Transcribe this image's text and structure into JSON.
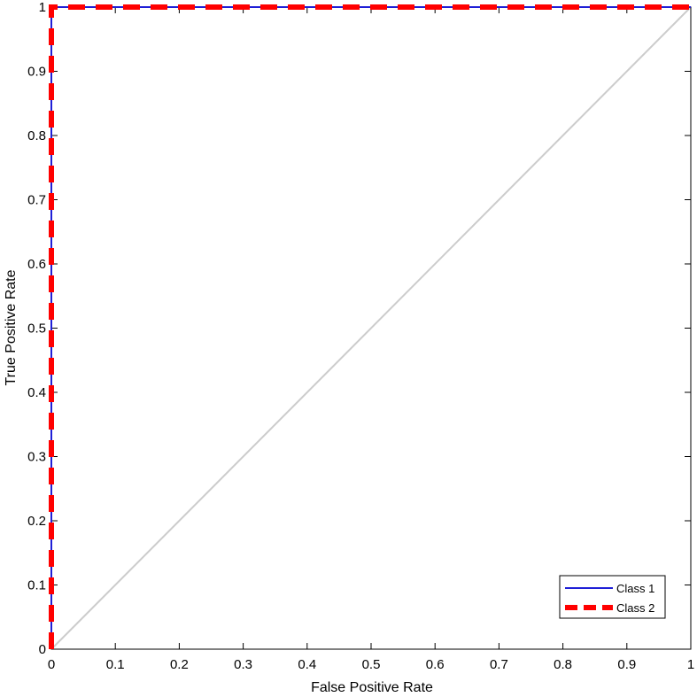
{
  "chart_data": {
    "type": "line",
    "title": "",
    "xlabel": "False Positive Rate",
    "ylabel": "True Positive Rate",
    "xlim": [
      0,
      1
    ],
    "ylim": [
      0,
      1
    ],
    "xticks": [
      "0",
      "0.1",
      "0.2",
      "0.3",
      "0.4",
      "0.5",
      "0.6",
      "0.7",
      "0.8",
      "0.9",
      "1"
    ],
    "yticks": [
      "0",
      "0.1",
      "0.2",
      "0.3",
      "0.4",
      "0.5",
      "0.6",
      "0.7",
      "0.8",
      "0.9",
      "1"
    ],
    "grid": false,
    "legend_position": "bottom-right",
    "reference_line": {
      "x": [
        0,
        1
      ],
      "y": [
        0,
        1
      ],
      "color": "#cccccc"
    },
    "series": [
      {
        "name": "Class 1",
        "color": "#1f1fd6",
        "style": "solid",
        "x": [
          0,
          0,
          1
        ],
        "y": [
          0,
          1,
          1
        ]
      },
      {
        "name": "Class 2",
        "color": "#ff0000",
        "style": "dashed",
        "x": [
          0,
          0,
          1
        ],
        "y": [
          0,
          1,
          1
        ]
      }
    ]
  }
}
